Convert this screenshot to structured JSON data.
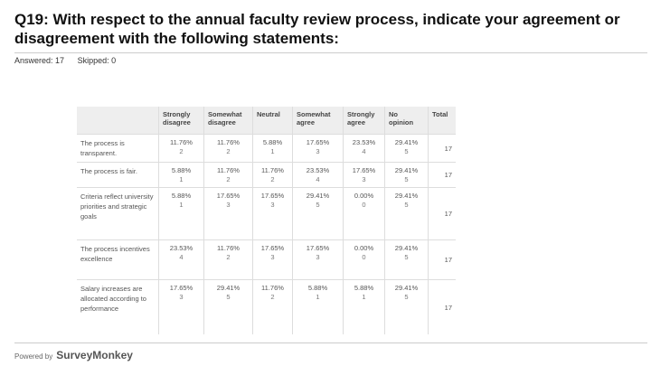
{
  "header": {
    "title": "Q19: With respect to the annual faculty review process, indicate your agreement or disagreement with the following statements:",
    "answered": "Answered: 17",
    "skipped": "Skipped: 0"
  },
  "table": {
    "columns": [
      "Strongly disagree",
      "Somewhat disagree",
      "Neutral",
      "Somewhat agree",
      "Strongly agree",
      "No opinion",
      "Total"
    ],
    "rows": [
      {
        "label": "The process is transparent.",
        "cells": [
          {
            "percent": "11.76%",
            "count": "2"
          },
          {
            "percent": "11.76%",
            "count": "2"
          },
          {
            "percent": "5.88%",
            "count": "1"
          },
          {
            "percent": "17.65%",
            "count": "3"
          },
          {
            "percent": "23.53%",
            "count": "4"
          },
          {
            "percent": "29.41%",
            "count": "5"
          }
        ],
        "total": "17"
      },
      {
        "label": "The process is fair.",
        "cells": [
          {
            "percent": "5.88%",
            "count": "1"
          },
          {
            "percent": "11.76%",
            "count": "2"
          },
          {
            "percent": "11.76%",
            "count": "2"
          },
          {
            "percent": "23.53%",
            "count": "4"
          },
          {
            "percent": "17.65%",
            "count": "3"
          },
          {
            "percent": "29.41%",
            "count": "5"
          }
        ],
        "total": "17"
      },
      {
        "label": "Criteria reflect university priorities and strategic goals",
        "cells": [
          {
            "percent": "5.88%",
            "count": "1"
          },
          {
            "percent": "17.65%",
            "count": "3"
          },
          {
            "percent": "17.65%",
            "count": "3"
          },
          {
            "percent": "29.41%",
            "count": "5"
          },
          {
            "percent": "0.00%",
            "count": "0"
          },
          {
            "percent": "29.41%",
            "count": "5"
          }
        ],
        "total": "17"
      },
      {
        "label": "The process incentives excellence",
        "cells": [
          {
            "percent": "23.53%",
            "count": "4"
          },
          {
            "percent": "11.76%",
            "count": "2"
          },
          {
            "percent": "17.65%",
            "count": "3"
          },
          {
            "percent": "17.65%",
            "count": "3"
          },
          {
            "percent": "0.00%",
            "count": "0"
          },
          {
            "percent": "29.41%",
            "count": "5"
          }
        ],
        "total": "17"
      },
      {
        "label": "Salary increases are allocated according to performance",
        "cells": [
          {
            "percent": "17.65%",
            "count": "3"
          },
          {
            "percent": "29.41%",
            "count": "5"
          },
          {
            "percent": "11.76%",
            "count": "2"
          },
          {
            "percent": "5.88%",
            "count": "1"
          },
          {
            "percent": "5.88%",
            "count": "1"
          },
          {
            "percent": "29.41%",
            "count": "5"
          }
        ],
        "total": "17"
      }
    ]
  },
  "footer": {
    "powered": "Powered by",
    "brand": "SurveyMonkey"
  }
}
